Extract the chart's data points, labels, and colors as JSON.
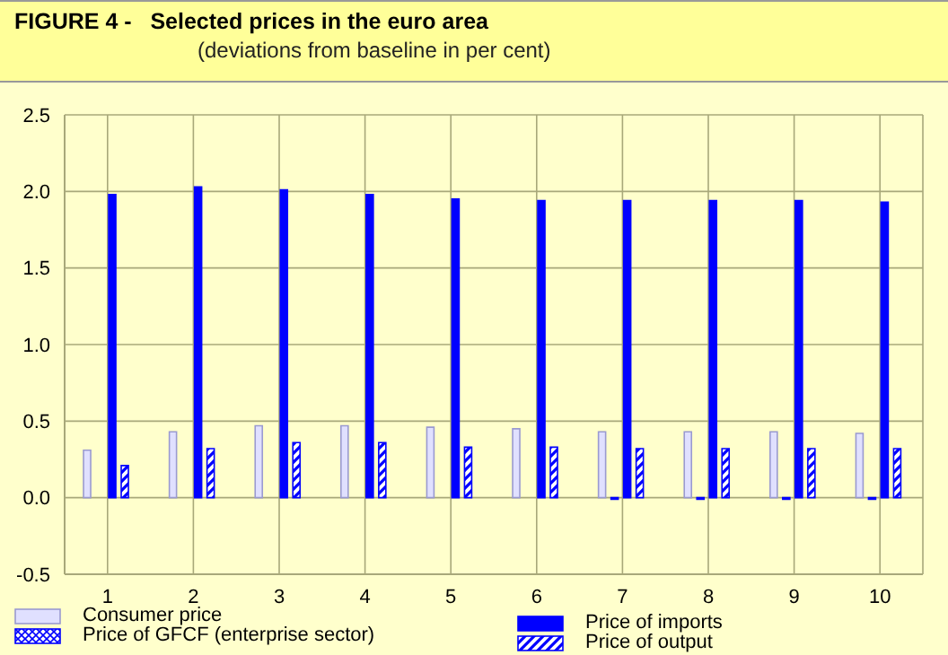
{
  "chart_data": {
    "type": "bar",
    "title": "FIGURE 4 -   Selected prices in the euro area",
    "subtitle": "(deviations from baseline in per cent)",
    "categories": [
      "1",
      "2",
      "3",
      "4",
      "5",
      "6",
      "7",
      "8",
      "9",
      "10"
    ],
    "series": [
      {
        "name": "Consumer price",
        "color": "#e0e0ff",
        "values": [
          0.31,
          0.43,
          0.47,
          0.47,
          0.46,
          0.45,
          0.43,
          0.43,
          0.43,
          0.42
        ]
      },
      {
        "name": "Price of GFCF (enterprise sector)",
        "color": "#0000ff",
        "values": [
          0,
          0,
          0,
          0,
          0,
          0,
          -0.01,
          -0.01,
          -0.01,
          -0.01
        ]
      },
      {
        "name": "Price of imports",
        "color": "#0000ff",
        "values": [
          1.98,
          2.03,
          2.01,
          1.98,
          1.95,
          1.94,
          1.94,
          1.94,
          1.94,
          1.93
        ]
      },
      {
        "name": "Price of output",
        "color": "#0000ff",
        "values": [
          0.21,
          0.32,
          0.36,
          0.36,
          0.33,
          0.33,
          0.32,
          0.32,
          0.32,
          0.32
        ]
      }
    ],
    "ylim": [
      -0.5,
      2.5
    ],
    "yticks": [
      -0.5,
      {
        "value": 0,
        "label": "0.0"
      },
      0.5,
      {
        "value": 1,
        "label": "1.0"
      },
      1.5,
      {
        "value": 2,
        "label": "2.0"
      },
      2.5
    ],
    "grid": true,
    "legend": "bottom"
  }
}
